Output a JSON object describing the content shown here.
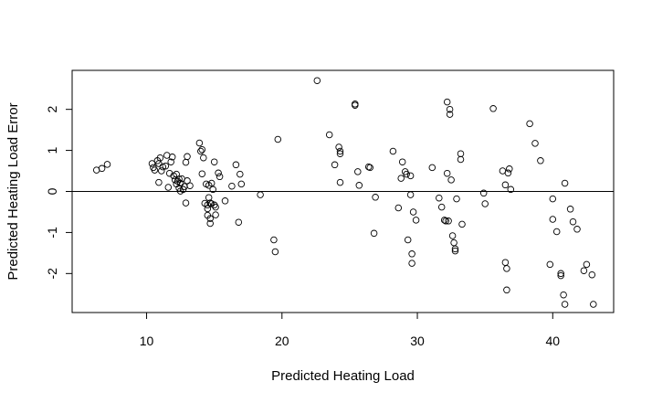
{
  "chart_data": {
    "type": "scatter",
    "xlabel": "Predicted Heating Load",
    "ylabel": "Predicted Heating Load Error",
    "xlim": [
      4.5,
      44.5
    ],
    "ylim": [
      -2.95,
      2.95
    ],
    "xticks": [
      10,
      20,
      30,
      40
    ],
    "yticks": [
      -2,
      -1,
      0,
      1,
      2
    ],
    "reference_line_y": 0,
    "grid": false,
    "legend": "none",
    "marker": "open-circle",
    "points": [
      [
        6.3,
        0.52
      ],
      [
        6.7,
        0.56
      ],
      [
        7.1,
        0.66
      ],
      [
        10.4,
        0.68
      ],
      [
        10.5,
        0.58
      ],
      [
        10.6,
        0.52
      ],
      [
        10.8,
        0.75
      ],
      [
        10.9,
        0.68
      ],
      [
        10.9,
        0.22
      ],
      [
        11.0,
        0.82
      ],
      [
        11.1,
        0.5
      ],
      [
        11.2,
        0.6
      ],
      [
        11.4,
        0.62
      ],
      [
        11.5,
        0.88
      ],
      [
        11.6,
        0.1
      ],
      [
        11.7,
        0.44
      ],
      [
        11.8,
        0.72
      ],
      [
        11.9,
        0.84
      ],
      [
        12.0,
        0.38
      ],
      [
        12.1,
        0.28
      ],
      [
        12.2,
        0.18
      ],
      [
        12.2,
        0.42
      ],
      [
        12.3,
        0.25
      ],
      [
        12.4,
        0.08
      ],
      [
        12.4,
        0.3
      ],
      [
        12.5,
        0.2
      ],
      [
        12.5,
        0.01
      ],
      [
        12.6,
        0.31
      ],
      [
        12.7,
        0.05
      ],
      [
        12.8,
        0.12
      ],
      [
        12.9,
        0.71
      ],
      [
        12.9,
        -0.28
      ],
      [
        13.0,
        0.85
      ],
      [
        13.0,
        0.26
      ],
      [
        13.2,
        0.14
      ],
      [
        13.9,
        1.18
      ],
      [
        14.0,
        0.98
      ],
      [
        14.1,
        1.02
      ],
      [
        14.1,
        0.43
      ],
      [
        14.2,
        0.82
      ],
      [
        14.3,
        -0.29
      ],
      [
        14.4,
        0.18
      ],
      [
        14.5,
        -0.33
      ],
      [
        14.5,
        -0.42
      ],
      [
        14.5,
        -0.58
      ],
      [
        14.6,
        -0.15
      ],
      [
        14.6,
        0.15
      ],
      [
        14.7,
        -0.28
      ],
      [
        14.7,
        -0.66
      ],
      [
        14.7,
        -0.78
      ],
      [
        14.8,
        -0.3
      ],
      [
        14.8,
        0.2
      ],
      [
        14.9,
        0.05
      ],
      [
        15.0,
        0.72
      ],
      [
        15.0,
        -0.33
      ],
      [
        15.1,
        -0.38
      ],
      [
        15.1,
        -0.57
      ],
      [
        15.3,
        0.45
      ],
      [
        15.4,
        0.36
      ],
      [
        15.8,
        -0.23
      ],
      [
        16.3,
        0.13
      ],
      [
        16.6,
        0.65
      ],
      [
        16.8,
        -0.75
      ],
      [
        16.9,
        0.42
      ],
      [
        17.0,
        0.18
      ],
      [
        18.4,
        -0.08
      ],
      [
        19.4,
        -1.18
      ],
      [
        19.5,
        -1.47
      ],
      [
        19.7,
        1.27
      ],
      [
        22.6,
        2.7
      ],
      [
        23.5,
        1.38
      ],
      [
        23.9,
        0.65
      ],
      [
        24.2,
        1.08
      ],
      [
        24.3,
        0.98
      ],
      [
        24.3,
        0.92
      ],
      [
        24.3,
        0.22
      ],
      [
        25.4,
        2.13
      ],
      [
        25.4,
        2.1
      ],
      [
        25.6,
        0.48
      ],
      [
        25.7,
        0.15
      ],
      [
        26.4,
        0.6
      ],
      [
        26.5,
        0.58
      ],
      [
        26.8,
        -1.02
      ],
      [
        26.9,
        -0.14
      ],
      [
        28.2,
        0.98
      ],
      [
        28.6,
        -0.4
      ],
      [
        28.8,
        0.32
      ],
      [
        28.9,
        0.72
      ],
      [
        29.1,
        0.48
      ],
      [
        29.2,
        0.42
      ],
      [
        29.3,
        -1.18
      ],
      [
        29.5,
        0.38
      ],
      [
        29.5,
        -0.08
      ],
      [
        29.6,
        -1.52
      ],
      [
        29.6,
        -1.75
      ],
      [
        29.7,
        -0.5
      ],
      [
        29.9,
        -0.7
      ],
      [
        31.1,
        0.58
      ],
      [
        31.6,
        -0.16
      ],
      [
        31.8,
        -0.38
      ],
      [
        32.0,
        -0.7
      ],
      [
        32.1,
        -0.72
      ],
      [
        32.2,
        2.18
      ],
      [
        32.2,
        0.44
      ],
      [
        32.3,
        -0.72
      ],
      [
        32.4,
        2.0
      ],
      [
        32.4,
        1.88
      ],
      [
        32.5,
        0.28
      ],
      [
        32.6,
        -1.08
      ],
      [
        32.7,
        -1.25
      ],
      [
        32.8,
        -1.4
      ],
      [
        32.8,
        -1.45
      ],
      [
        32.9,
        -0.18
      ],
      [
        33.2,
        0.92
      ],
      [
        33.2,
        0.78
      ],
      [
        33.3,
        -0.8
      ],
      [
        34.9,
        -0.04
      ],
      [
        35.0,
        -0.3
      ],
      [
        35.6,
        2.02
      ],
      [
        36.3,
        0.5
      ],
      [
        36.5,
        0.16
      ],
      [
        36.5,
        -1.73
      ],
      [
        36.6,
        -2.4
      ],
      [
        36.6,
        -1.88
      ],
      [
        36.7,
        0.45
      ],
      [
        36.8,
        0.55
      ],
      [
        36.9,
        0.05
      ],
      [
        38.3,
        1.65
      ],
      [
        38.7,
        1.17
      ],
      [
        39.1,
        0.75
      ],
      [
        39.8,
        -1.78
      ],
      [
        40.0,
        -0.18
      ],
      [
        40.0,
        -0.68
      ],
      [
        40.3,
        -0.98
      ],
      [
        40.6,
        -2.0
      ],
      [
        40.6,
        -2.05
      ],
      [
        40.8,
        -2.52
      ],
      [
        40.9,
        0.2
      ],
      [
        40.9,
        -2.75
      ],
      [
        41.3,
        -0.43
      ],
      [
        41.5,
        -0.74
      ],
      [
        41.8,
        -0.92
      ],
      [
        42.3,
        -1.93
      ],
      [
        42.5,
        -1.78
      ],
      [
        42.9,
        -2.03
      ],
      [
        43.0,
        -2.75
      ]
    ]
  }
}
